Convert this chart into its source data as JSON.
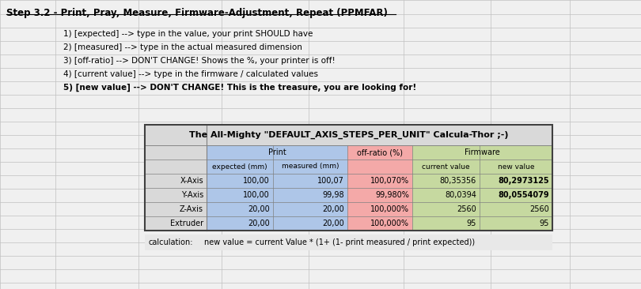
{
  "title_step": "Step 3.2 - Print, Pray, Measure, Firmware-Adjustment, Repeat (PPMFAR)",
  "instructions": [
    "1) [expected] --> type in the value, your print SHOULD have",
    "2) [measured] --> type in the actual measured dimension",
    "3) [off-ratio] --> DON'T CHANGE! Shows the %, your printer is off!",
    "4) [current value] --> type in the firmware / calculated values",
    "5) [new value] --> DON'T CHANGE! This is the treasure, you are looking for!"
  ],
  "table_title": "The All-Mighty \"DEFAULT_AXIS_STEPS_PER_UNIT\" Calcula-Thor ;-)",
  "col_headers_row1": [
    "",
    "Print",
    "",
    "off-ratio (%)",
    "Firmware",
    ""
  ],
  "col_headers_row2": [
    "",
    "expected (mm)",
    "measured (mm)",
    "",
    "current value",
    "new value"
  ],
  "rows": [
    [
      "X-Axis",
      "100,00",
      "100,07",
      "100,070%",
      "80,35356",
      "80,2973125"
    ],
    [
      "Y-Axis",
      "100,00",
      "99,98",
      "99,980%",
      "80,0394",
      "80,0554079"
    ],
    [
      "Z-Axis",
      "20,00",
      "20,00",
      "100,000%",
      "2560",
      "2560"
    ],
    [
      "Extruder",
      "20,00",
      "20,00",
      "100,000%",
      "95",
      "95"
    ]
  ],
  "calculation_label": "calculation:",
  "calculation_formula": "new value = current Value * (1+ (1- print measured / print expected))",
  "bg_color": "#ffffff",
  "grid_color": "#c0c0c0",
  "header_bg": "#f2f2f2",
  "print_col_color": "#aec6e8",
  "offratio_col_color": "#f4a9a8",
  "firmware_col_color": "#c6d9a0",
  "table_border_color": "#404040",
  "new_value_bold_rows": [
    0,
    1
  ],
  "step_title_color": "#000000",
  "outer_bg": "#f0f0f0"
}
